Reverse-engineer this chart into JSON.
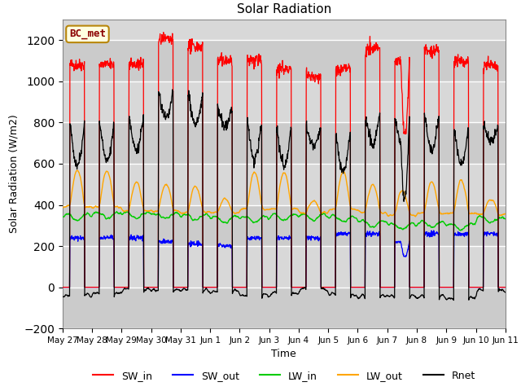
{
  "title": "Solar Radiation",
  "ylabel": "Solar Radiation (W/m2)",
  "xlabel": "Time",
  "ylim": [
    -200,
    1300
  ],
  "yticks": [
    -200,
    0,
    200,
    400,
    600,
    800,
    1000,
    1200
  ],
  "background_color": "#ffffff",
  "plot_bg_color": "#d8d8d8",
  "legend_label": "BC_met",
  "series_colors": {
    "SW_in": "#ff0000",
    "SW_out": "#0000ff",
    "LW_in": "#00cc00",
    "LW_out": "#ffa500",
    "Rnet": "#000000"
  },
  "x_tick_labels": [
    "May 27",
    "May 28",
    "May 29",
    "May 30",
    "May 31",
    "Jun 1",
    "Jun 2",
    "Jun 3",
    "Jun 4",
    "Jun 5",
    "Jun 6",
    "Jun 7",
    "Jun 8",
    "Jun 9",
    "Jun 10",
    "Jun 11"
  ],
  "n_days": 15,
  "pts_per_day": 96,
  "grid_color": "#bbbbbb",
  "grid_stripe_color": "#c8c8c8"
}
